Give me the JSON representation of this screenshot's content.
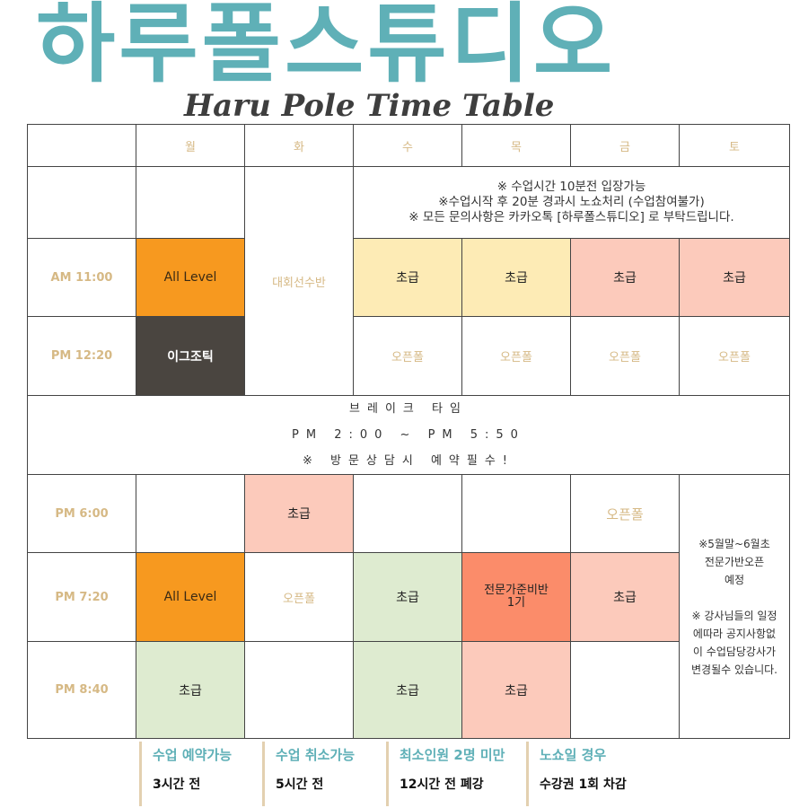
{
  "title": "하루폴스튜디오",
  "subtitle": "Haru Pole Time Table",
  "days": [
    "월",
    "화",
    "수",
    "목",
    "금",
    "토"
  ],
  "notice": [
    "※ 수업시간 10분전 입장가능",
    "※수업시작 후 20분 경과시 노쇼처리 (수업참여불가)",
    "※ 모든 문의사항은 카카오톡 [하루폴스튜디오] 로 부탁드립니다."
  ],
  "times": [
    "AM 11:00",
    "PM 12:20",
    "PM 6:00",
    "PM 7:20",
    "PM 8:40"
  ],
  "tue_special": "대회선수반",
  "am11": {
    "mon": "All Level",
    "wed": "초급",
    "thu": "초급",
    "fri": "초급",
    "sat": "초급"
  },
  "pm1220": {
    "mon": "이그조틱",
    "wed": "오픈폴",
    "thu": "오픈폴",
    "fri": "오픈폴",
    "sat": "오픈폴"
  },
  "break": [
    "브레이크 타임",
    "PM 2:00 ~ PM 5:50",
    "※ 방문상담시 예약필수!"
  ],
  "pm600": {
    "tue": "초급",
    "fri": "오픈폴"
  },
  "pm720": {
    "mon": "All Level",
    "tue": "오픈폴",
    "wed": "초급",
    "thu": "전문가준비반 1기",
    "fri": "초급"
  },
  "pm840": {
    "mon": "초급",
    "wed": "초급",
    "thu": "초급"
  },
  "sat_note": [
    "※5월말~6월초",
    "전문가반오픈",
    "예정",
    "",
    "※ 강사님들의 일정",
    "에따라 공지사항없",
    "이 수업담당강사가",
    "변경될수 있습니다."
  ],
  "footer": [
    {
      "heading": "수업 예약가능",
      "value": "3시간 전"
    },
    {
      "heading": "수업 취소가능",
      "value": "5시간 전"
    },
    {
      "heading": "최소인원 2명 미만",
      "value": "12시간 전 폐강"
    },
    {
      "heading": "노쇼일 경우",
      "value": "수강권 1회 차감"
    }
  ],
  "colors": {
    "teal": "#5fb0b7",
    "orange": "#f7991f",
    "yellow": "#fdebb5",
    "pink": "#fccabb",
    "dark": "#4a4540",
    "green": "#deebd0",
    "salmon": "#fb8c6a"
  }
}
